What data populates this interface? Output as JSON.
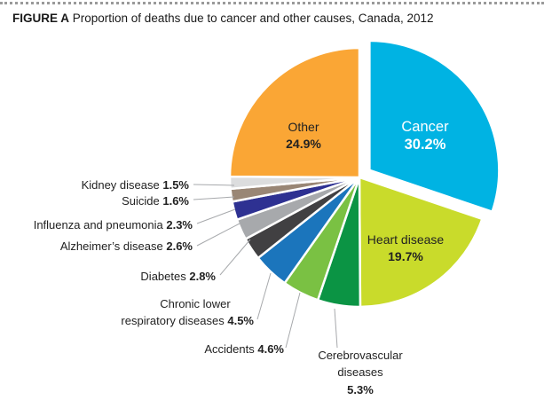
{
  "header": {
    "figure_label": "FIGURE A",
    "title": "Proportion of deaths due to cancer and other causes, Canada, 2012"
  },
  "chart_data": {
    "type": "pie",
    "title": "Proportion of deaths due to cancer and other causes, Canada, 2012",
    "unit": "%",
    "slices": [
      {
        "name": "Cancer",
        "value": 30.2,
        "value_label": "30.2%",
        "color": "#00b3e3",
        "exploded": true
      },
      {
        "name": "Heart disease",
        "value": 19.7,
        "value_label": "19.7%",
        "color": "#c9db2b"
      },
      {
        "name": "Cerebrovascular diseases",
        "value": 5.3,
        "value_label": "5.3%",
        "color": "#0b9444"
      },
      {
        "name": "Accidents",
        "value": 4.6,
        "value_label": "4.6%",
        "color": "#7ac143"
      },
      {
        "name": "Chronic lower respiratory diseases",
        "value": 4.5,
        "value_label": "4.5%",
        "color": "#1b75bc"
      },
      {
        "name": "Diabetes",
        "value": 2.8,
        "value_label": "2.8%",
        "color": "#414042"
      },
      {
        "name": "Alzheimer’s disease",
        "value": 2.6,
        "value_label": "2.6%",
        "color": "#a7a9ac"
      },
      {
        "name": "Influenza and pneumonia",
        "value": 2.3,
        "value_label": "2.3%",
        "color": "#2e3192"
      },
      {
        "name": "Suicide",
        "value": 1.6,
        "value_label": "1.6%",
        "color": "#998675"
      },
      {
        "name": "Kidney disease",
        "value": 1.5,
        "value_label": "1.5%",
        "color": "#dcddde"
      },
      {
        "name": "Other",
        "value": 24.9,
        "value_label": "24.9%",
        "color": "#faa635"
      }
    ],
    "labels": {
      "cancer": {
        "name": "Cancer",
        "value": "30.2%"
      },
      "heart": {
        "name": "Heart disease",
        "value": "19.7%"
      },
      "other": {
        "name": "Other",
        "value": "24.9%"
      },
      "cerebro": {
        "line1": "Cerebrovascular",
        "line2": "diseases",
        "value": "5.3%"
      },
      "accidents": {
        "name": "Accidents",
        "value": "4.6%"
      },
      "chronic": {
        "line1": "Chronic lower",
        "line2": "respiratory diseases",
        "value": "4.5%"
      },
      "diabetes": {
        "name": "Diabetes",
        "value": "2.8%"
      },
      "alzheimer": {
        "name": "Alzheimer’s disease",
        "value": "2.6%"
      },
      "influenza": {
        "name": "Influenza and pneumonia",
        "value": "2.3%"
      },
      "suicide": {
        "name": "Suicide",
        "value": "1.6%"
      },
      "kidney": {
        "name": "Kidney disease",
        "value": "1.5%"
      }
    }
  }
}
